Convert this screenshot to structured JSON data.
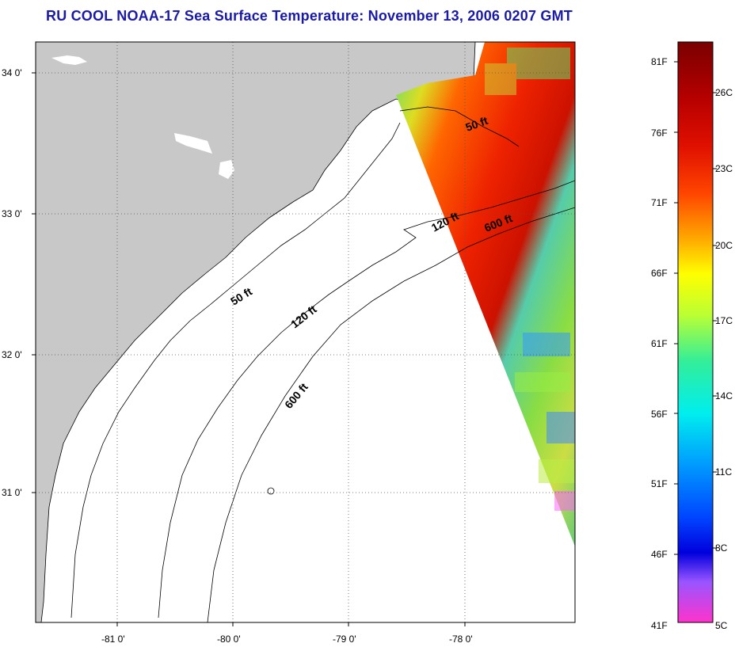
{
  "title": "RU COOL  NOAA-17  Sea Surface Temperature:  November 13, 2006 0207 GMT",
  "map": {
    "lat_labels": [
      "34 0'",
      "33 0'",
      "32 0'",
      "31 0'"
    ],
    "lon_labels": [
      "-81 0'",
      "-80 0'",
      "-79 0'",
      "-78 0'"
    ],
    "isobath_labels": [
      "50 ft",
      "120 ft",
      "600 ft",
      "50 ft",
      "120 ft",
      "600 ft"
    ]
  },
  "colorbar": {
    "fahrenheit_labels": [
      "81F",
      "76F",
      "71F",
      "66F",
      "61F",
      "56F",
      "51F",
      "46F",
      "41F"
    ],
    "celsius_labels": [
      "26C",
      "23C",
      "20C",
      "17C",
      "14C",
      "11C",
      "8C",
      "5C"
    ],
    "colors": [
      "#7a0000",
      "#cc0000",
      "#ff3300",
      "#ff8800",
      "#ffcc00",
      "#ffff00",
      "#bbff33",
      "#44ee88",
      "#00eecc",
      "#00ccff",
      "#0088ff",
      "#0033ff",
      "#0000ee",
      "#9955ff",
      "#ff33ff"
    ]
  }
}
